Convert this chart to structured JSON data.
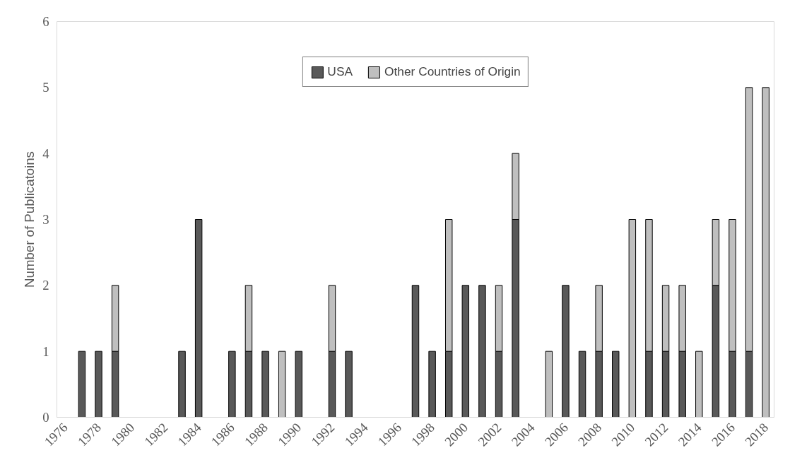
{
  "chart_data": {
    "type": "bar",
    "stacked": true,
    "ylabel": "Number of Publicatoins",
    "categories": [
      "1976",
      null,
      "1978",
      null,
      "1980",
      null,
      "1982",
      null,
      "1984",
      null,
      "1986",
      null,
      "1988",
      null,
      "1990",
      null,
      "1992",
      null,
      "1994",
      null,
      "1996",
      null,
      "1998",
      null,
      "2000",
      null,
      "2002",
      null,
      "2004",
      null,
      "2006",
      null,
      "2008",
      null,
      "2010",
      null,
      "2012",
      null,
      "2014",
      null,
      "2016",
      null,
      "2018"
    ],
    "series": [
      {
        "name": "USA",
        "color": "#595959",
        "values": [
          null,
          1,
          1,
          1,
          null,
          null,
          null,
          1,
          3,
          null,
          1,
          1,
          1,
          null,
          1,
          null,
          1,
          1,
          null,
          null,
          null,
          2,
          1,
          1,
          2,
          2,
          1,
          3,
          null,
          null,
          2,
          1,
          1,
          1,
          null,
          1,
          1,
          1,
          null,
          2,
          1,
          1,
          null
        ]
      },
      {
        "name": "Other Countries of Origin",
        "color": "#bfbfbf",
        "values": [
          null,
          null,
          null,
          1,
          null,
          null,
          null,
          null,
          null,
          null,
          null,
          1,
          null,
          1,
          null,
          null,
          1,
          null,
          null,
          null,
          null,
          null,
          null,
          2,
          null,
          null,
          1,
          1,
          null,
          1,
          null,
          null,
          1,
          null,
          3,
          2,
          1,
          1,
          1,
          1,
          2,
          4,
          5
        ]
      }
    ],
    "ylim": [
      0,
      6
    ],
    "yticks": [
      0,
      1,
      2,
      3,
      4,
      5,
      6
    ],
    "grid": false,
    "legend": "top"
  }
}
